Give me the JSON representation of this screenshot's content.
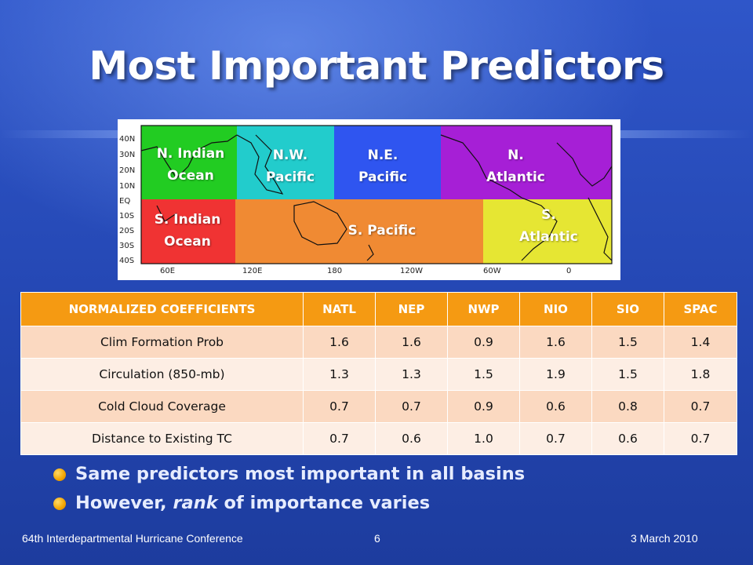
{
  "slide": {
    "title": "Most Important Predictors",
    "map": {
      "regions": [
        {
          "label_line1": "N. Indian",
          "label_line2": "Ocean",
          "color": "#22cc22"
        },
        {
          "label_line1": "N.W.",
          "label_line2": "Pacific",
          "color": "#22cccc"
        },
        {
          "label_line1": "N.E.",
          "label_line2": "Pacific",
          "color": "#2f55f0"
        },
        {
          "label_line1": "N.",
          "label_line2": "Atlantic",
          "color": "#a61fd6"
        },
        {
          "label_line1": "S. Indian",
          "label_line2": "Ocean",
          "color": "#f03333"
        },
        {
          "label_line1": "S. Pacific",
          "label_line2": "",
          "color": "#f08a33"
        },
        {
          "label_line1": "S.",
          "label_line2": "Atlantic",
          "color": "#e6e633"
        }
      ],
      "lat_ticks": [
        "40N",
        "30N",
        "20N",
        "10N",
        "EQ",
        "10S",
        "20S",
        "30S",
        "40S"
      ],
      "lon_ticks": [
        "60E",
        "120E",
        "180",
        "120W",
        "60W",
        "0"
      ]
    },
    "table": {
      "headers": [
        "NORMALIZED COEFFICIENTS",
        "NATL",
        "NEP",
        "NWP",
        "NIO",
        "SIO",
        "SPAC"
      ],
      "rows": [
        [
          "Clim Formation Prob",
          "1.6",
          "1.6",
          "0.9",
          "1.6",
          "1.5",
          "1.4"
        ],
        [
          "Circulation (850-mb)",
          "1.3",
          "1.3",
          "1.5",
          "1.9",
          "1.5",
          "1.8"
        ],
        [
          "Cold Cloud Coverage",
          "0.7",
          "0.7",
          "0.9",
          "0.6",
          "0.8",
          "0.7"
        ],
        [
          "Distance to Existing TC",
          "0.7",
          "0.6",
          "1.0",
          "0.7",
          "0.6",
          "0.7"
        ]
      ]
    },
    "bullets": [
      {
        "text": "Same predictors most important in all basins"
      },
      {
        "pre": "However, ",
        "em": "rank",
        "post": " of importance varies"
      }
    ],
    "footer": {
      "conference": "64th Interdepartmental Hurricane Conference",
      "page_number": "6",
      "date": "3 March 2010"
    }
  }
}
